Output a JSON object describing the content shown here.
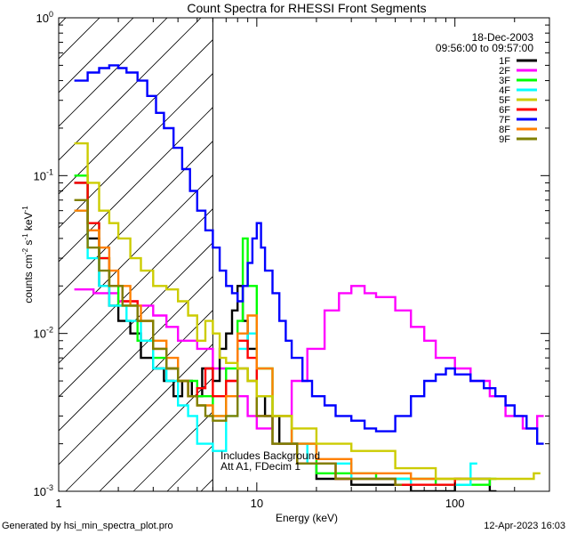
{
  "chart_data": {
    "type": "line",
    "title": "Count Spectra for RHESSI Front Segments",
    "xlabel": "Energy (keV)",
    "ylabel_parts": {
      "pre": "counts cm",
      "e1": "-2",
      "mid": " s",
      "e2": "-1",
      "post": " keV",
      "e3": "-1"
    },
    "xscale": "log",
    "yscale": "log",
    "xlim": [
      1,
      300
    ],
    "ylim": [
      0.001,
      1
    ],
    "xticks": [
      {
        "value": 10,
        "label": "10"
      },
      {
        "value": 100,
        "label": "100"
      }
    ],
    "xtick_one": "1",
    "yticks": [
      {
        "value": 1,
        "base": "10",
        "exp": "0"
      },
      {
        "value": 0.1,
        "base": "10",
        "exp": "-1"
      },
      {
        "value": 0.01,
        "base": "10",
        "exp": "-2"
      },
      {
        "value": 0.001,
        "base": "10",
        "exp": "-3"
      }
    ],
    "hatched_region": {
      "x_from": 1,
      "x_to": 6
    },
    "date": "18-Dec-2003",
    "time_range": "09:56:00 to 09:57:00",
    "annotation_lines": [
      "Includes Background",
      "Att A1, FDecim 1"
    ],
    "series": [
      {
        "name": "1F",
        "color": "#000000",
        "points": [
          [
            1.2,
            0.09
          ],
          [
            1.4,
            0.04
          ],
          [
            1.6,
            0.02
          ],
          [
            1.8,
            0.015
          ],
          [
            2.0,
            0.012
          ],
          [
            2.3,
            0.01
          ],
          [
            2.6,
            0.007
          ],
          [
            3.0,
            0.006
          ],
          [
            3.4,
            0.005
          ],
          [
            3.8,
            0.004
          ],
          [
            4.2,
            0.005
          ],
          [
            4.7,
            0.004
          ],
          [
            5.3,
            0.006
          ],
          [
            6,
            0.005
          ],
          [
            6.5,
            0.008
          ],
          [
            7,
            0.01
          ],
          [
            7.5,
            0.014
          ],
          [
            8,
            0.02
          ],
          [
            8.5,
            0.012
          ],
          [
            9,
            0.008
          ],
          [
            10,
            0.004
          ],
          [
            11,
            0.003
          ],
          [
            13,
            0.002
          ],
          [
            16,
            0.0015
          ],
          [
            20,
            0.0012
          ],
          [
            30,
            0.0011
          ],
          [
            60,
            0.001
          ],
          [
            100,
            0.0012
          ],
          [
            150,
            0.001
          ]
        ]
      },
      {
        "name": "2F",
        "color": "#ff00ff",
        "points": [
          [
            1.2,
            0.019
          ],
          [
            1.5,
            0.018
          ],
          [
            2.0,
            0.016
          ],
          [
            2.5,
            0.015
          ],
          [
            3.0,
            0.013
          ],
          [
            3.5,
            0.011
          ],
          [
            4.0,
            0.009
          ],
          [
            5.0,
            0.008
          ],
          [
            6.0,
            0.006
          ],
          [
            7,
            0.005
          ],
          [
            8,
            0.004
          ],
          [
            9,
            0.003
          ],
          [
            10,
            0.0025
          ],
          [
            12,
            0.003
          ],
          [
            15,
            0.005
          ],
          [
            18,
            0.008
          ],
          [
            22,
            0.014
          ],
          [
            26,
            0.018
          ],
          [
            30,
            0.02
          ],
          [
            35,
            0.018
          ],
          [
            40,
            0.017
          ],
          [
            50,
            0.014
          ],
          [
            60,
            0.011
          ],
          [
            70,
            0.009
          ],
          [
            80,
            0.007
          ],
          [
            100,
            0.006
          ],
          [
            120,
            0.005
          ],
          [
            150,
            0.004
          ],
          [
            180,
            0.003
          ],
          [
            220,
            0.0025
          ],
          [
            260,
            0.003
          ]
        ]
      },
      {
        "name": "3F",
        "color": "#00ff00",
        "points": [
          [
            1.2,
            0.1
          ],
          [
            1.4,
            0.05
          ],
          [
            1.6,
            0.03
          ],
          [
            1.8,
            0.02
          ],
          [
            2.0,
            0.015
          ],
          [
            2.5,
            0.009
          ],
          [
            3.0,
            0.007
          ],
          [
            3.5,
            0.006
          ],
          [
            4,
            0.005
          ],
          [
            5,
            0.004
          ],
          [
            6,
            0.003
          ],
          [
            7,
            0.006
          ],
          [
            8,
            0.012
          ],
          [
            8.5,
            0.04
          ],
          [
            9,
            0.02
          ],
          [
            10,
            0.006
          ],
          [
            12,
            0.003
          ],
          [
            15,
            0.002
          ],
          [
            20,
            0.0013
          ],
          [
            40,
            0.0012
          ],
          [
            80,
            0.0011
          ],
          [
            150,
            0.0012
          ]
        ]
      },
      {
        "name": "4F",
        "color": "#00ffff",
        "points": [
          [
            1.2,
            0.06
          ],
          [
            1.4,
            0.03
          ],
          [
            1.6,
            0.02
          ],
          [
            1.8,
            0.015
          ],
          [
            2.2,
            0.012
          ],
          [
            2.6,
            0.009
          ],
          [
            3.0,
            0.006
          ],
          [
            3.5,
            0.005
          ],
          [
            4,
            0.0035
          ],
          [
            4.5,
            0.003
          ],
          [
            5,
            0.002
          ],
          [
            6,
            0.0018
          ],
          [
            7,
            0.003
          ],
          [
            8,
            0.008
          ],
          [
            9,
            0.01
          ],
          [
            10,
            0.004
          ],
          [
            12,
            0.002
          ],
          [
            18,
            0.0015
          ],
          [
            30,
            0.0012
          ],
          [
            60,
            0.0011
          ],
          [
            120,
            0.0015
          ]
        ]
      },
      {
        "name": "5F",
        "color": "#cccc00",
        "points": [
          [
            1.2,
            0.16
          ],
          [
            1.4,
            0.09
          ],
          [
            1.6,
            0.06
          ],
          [
            1.8,
            0.05
          ],
          [
            2.0,
            0.04
          ],
          [
            2.3,
            0.03
          ],
          [
            2.6,
            0.025
          ],
          [
            3.0,
            0.02
          ],
          [
            3.5,
            0.019
          ],
          [
            4,
            0.016
          ],
          [
            4.5,
            0.013
          ],
          [
            5,
            0.009
          ],
          [
            5.5,
            0.012
          ],
          [
            6,
            0.01
          ],
          [
            6.5,
            0.007
          ],
          [
            7,
            0.0065
          ],
          [
            8,
            0.006
          ],
          [
            9,
            0.005
          ],
          [
            10,
            0.004
          ],
          [
            12,
            0.003
          ],
          [
            15,
            0.0025
          ],
          [
            20,
            0.002
          ],
          [
            30,
            0.0018
          ],
          [
            50,
            0.0014
          ],
          [
            80,
            0.0012
          ],
          [
            150,
            0.0012
          ],
          [
            250,
            0.0013
          ]
        ]
      },
      {
        "name": "6F",
        "color": "#ff0000",
        "points": [
          [
            1.2,
            0.09
          ],
          [
            1.4,
            0.05
          ],
          [
            1.6,
            0.03
          ],
          [
            1.8,
            0.02
          ],
          [
            2.1,
            0.016
          ],
          [
            2.5,
            0.012
          ],
          [
            3.0,
            0.008
          ],
          [
            3.5,
            0.006
          ],
          [
            4,
            0.005
          ],
          [
            4.5,
            0.004
          ],
          [
            5,
            0.0045
          ],
          [
            5.5,
            0.006
          ],
          [
            6,
            0.004
          ],
          [
            7,
            0.005
          ],
          [
            8,
            0.009
          ],
          [
            9,
            0.007
          ],
          [
            10,
            0.003
          ],
          [
            12,
            0.002
          ],
          [
            16,
            0.0015
          ],
          [
            25,
            0.0012
          ],
          [
            50,
            0.0011
          ],
          [
            100,
            0.0012
          ]
        ]
      },
      {
        "name": "7F",
        "color": "#0000ff",
        "points": [
          [
            1.2,
            0.4
          ],
          [
            1.4,
            0.45
          ],
          [
            1.6,
            0.48
          ],
          [
            1.8,
            0.5
          ],
          [
            2.0,
            0.48
          ],
          [
            2.2,
            0.45
          ],
          [
            2.5,
            0.4
          ],
          [
            2.8,
            0.32
          ],
          [
            3.1,
            0.25
          ],
          [
            3.4,
            0.2
          ],
          [
            3.8,
            0.15
          ],
          [
            4.2,
            0.11
          ],
          [
            4.6,
            0.08
          ],
          [
            5.0,
            0.06
          ],
          [
            5.5,
            0.045
          ],
          [
            6,
            0.035
          ],
          [
            6.5,
            0.025
          ],
          [
            7,
            0.02
          ],
          [
            7.5,
            0.018
          ],
          [
            8,
            0.016
          ],
          [
            8.5,
            0.02
          ],
          [
            9,
            0.028
          ],
          [
            9.5,
            0.04
          ],
          [
            10,
            0.05
          ],
          [
            10.5,
            0.035
          ],
          [
            11,
            0.025
          ],
          [
            12,
            0.018
          ],
          [
            13,
            0.012
          ],
          [
            14,
            0.009
          ],
          [
            15,
            0.007
          ],
          [
            17,
            0.005
          ],
          [
            19,
            0.004
          ],
          [
            22,
            0.0035
          ],
          [
            25,
            0.003
          ],
          [
            30,
            0.0028
          ],
          [
            35,
            0.0025
          ],
          [
            40,
            0.0024
          ],
          [
            50,
            0.003
          ],
          [
            60,
            0.004
          ],
          [
            70,
            0.005
          ],
          [
            80,
            0.0055
          ],
          [
            90,
            0.006
          ],
          [
            100,
            0.0055
          ],
          [
            120,
            0.005
          ],
          [
            140,
            0.0045
          ],
          [
            160,
            0.004
          ],
          [
            180,
            0.0035
          ],
          [
            200,
            0.003
          ],
          [
            230,
            0.0025
          ],
          [
            260,
            0.002
          ]
        ]
      },
      {
        "name": "8F",
        "color": "#ff8000",
        "points": [
          [
            1.2,
            0.06
          ],
          [
            1.4,
            0.045
          ],
          [
            1.6,
            0.035
          ],
          [
            1.8,
            0.025
          ],
          [
            2.0,
            0.02
          ],
          [
            2.3,
            0.015
          ],
          [
            2.6,
            0.012
          ],
          [
            3.0,
            0.009
          ],
          [
            3.5,
            0.007
          ],
          [
            4,
            0.005
          ],
          [
            4.5,
            0.004
          ],
          [
            5,
            0.0035
          ],
          [
            6,
            0.003
          ],
          [
            7,
            0.004
          ],
          [
            8,
            0.01
          ],
          [
            9,
            0.013
          ],
          [
            10,
            0.006
          ],
          [
            12,
            0.003
          ],
          [
            15,
            0.002
          ],
          [
            20,
            0.0016
          ],
          [
            30,
            0.0013
          ],
          [
            60,
            0.0012
          ],
          [
            120,
            0.0012
          ]
        ]
      },
      {
        "name": "9F",
        "color": "#808000",
        "points": [
          [
            1.2,
            0.07
          ],
          [
            1.4,
            0.035
          ],
          [
            1.6,
            0.025
          ],
          [
            1.8,
            0.02
          ],
          [
            2.1,
            0.015
          ],
          [
            2.5,
            0.012
          ],
          [
            3.0,
            0.008
          ],
          [
            3.5,
            0.006
          ],
          [
            4,
            0.005
          ],
          [
            4.5,
            0.004
          ],
          [
            5,
            0.0035
          ],
          [
            5.5,
            0.003
          ],
          [
            6,
            0.0028
          ],
          [
            7,
            0.003
          ],
          [
            8,
            0.006
          ],
          [
            9,
            0.005
          ],
          [
            10,
            0.003
          ],
          [
            12,
            0.002
          ],
          [
            16,
            0.0015
          ],
          [
            25,
            0.0012
          ],
          [
            50,
            0.0011
          ]
        ]
      }
    ]
  },
  "footer": {
    "generated_by": "Generated by hsi_min_spectra_plot.pro",
    "timestamp": "12-Apr-2023 16:03"
  }
}
